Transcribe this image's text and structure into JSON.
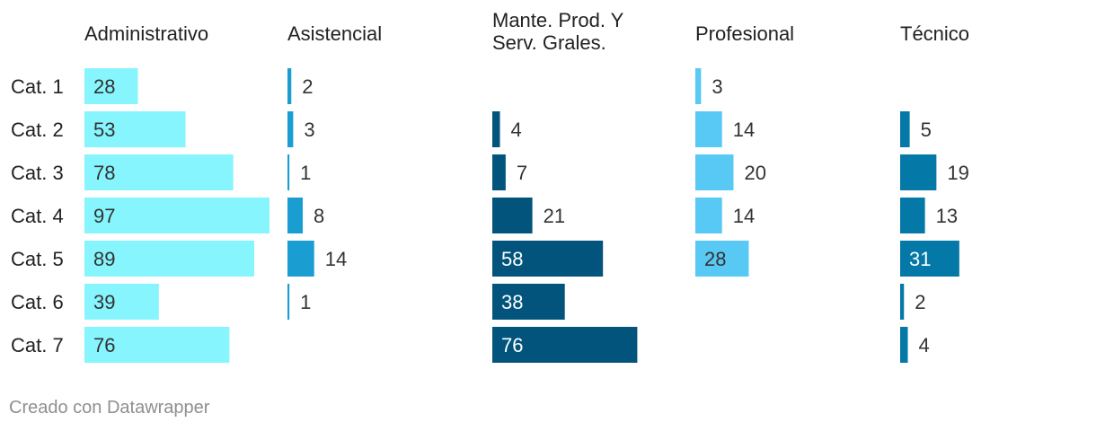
{
  "chart_data": {
    "type": "bar",
    "orientation": "horizontal",
    "layout": "small-multiples",
    "categories": [
      "Cat. 1",
      "Cat. 2",
      "Cat. 3",
      "Cat. 4",
      "Cat. 5",
      "Cat. 6",
      "Cat. 7"
    ],
    "series": [
      {
        "name": "Administrativo",
        "color": "#86f5fd",
        "values": [
          28,
          53,
          78,
          97,
          89,
          39,
          76
        ]
      },
      {
        "name": "Asistencial",
        "color": "#1a9ed2",
        "values": [
          2,
          3,
          1,
          8,
          14,
          1,
          null
        ]
      },
      {
        "name": "Mante. Prod. Y Serv. Grales.",
        "name_lines": [
          "Mante. Prod. Y",
          "Serv. Grales."
        ],
        "color": "#02547c",
        "values": [
          null,
          4,
          7,
          21,
          58,
          38,
          76
        ]
      },
      {
        "name": "Profesional",
        "color": "#58c9f4",
        "values": [
          3,
          14,
          20,
          14,
          28,
          null,
          null
        ]
      },
      {
        "name": "Técnico",
        "color": "#0478a6",
        "values": [
          null,
          5,
          19,
          13,
          31,
          2,
          4
        ]
      }
    ],
    "xlim": [
      0,
      97
    ],
    "grid": false,
    "legend": "none"
  },
  "footer": {
    "credit": "Creado con Datawrapper"
  }
}
